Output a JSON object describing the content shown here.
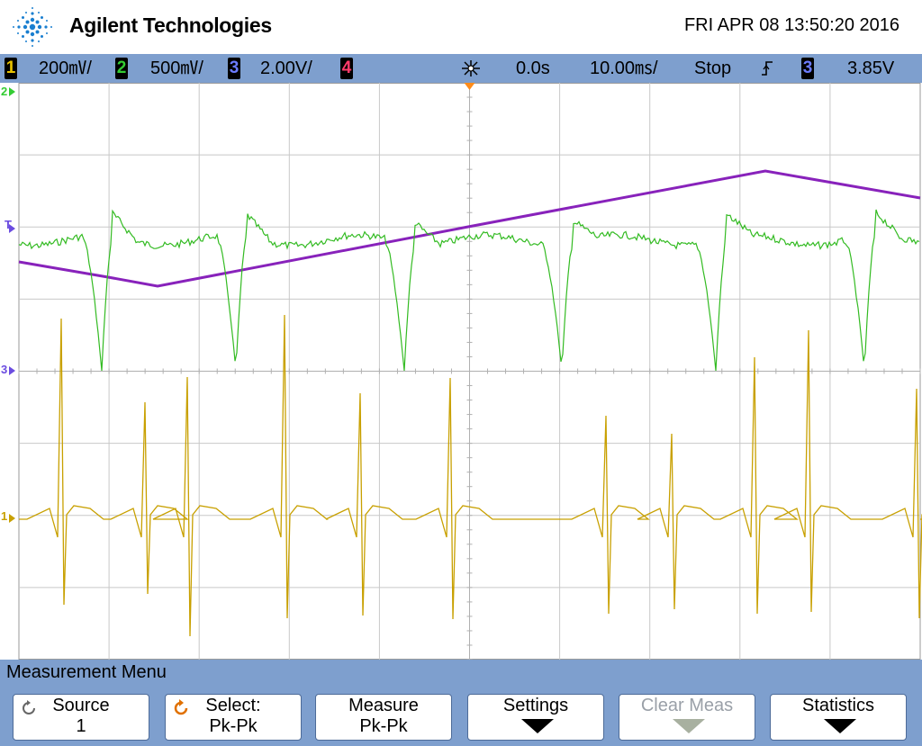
{
  "header": {
    "brand": "Agilent Technologies",
    "datetime": "FRI APR 08 13:50:20 2016"
  },
  "statusbar": {
    "channels": [
      {
        "num": "1",
        "scale": "200㎷/",
        "color": "#e8c200"
      },
      {
        "num": "2",
        "scale": "500㎷/",
        "color": "#33cc33"
      },
      {
        "num": "3",
        "scale": "2.00V/",
        "color": "#6b7cff"
      },
      {
        "num": "4",
        "scale": "",
        "color": "#ff3b6b"
      }
    ],
    "time_delay": "0.0s",
    "time_scale": "10.00㎳/",
    "run_state": "Stop",
    "trigger_source": "3",
    "trigger_level": "3.85V"
  },
  "markers": {
    "ch1": "1",
    "ch2": "2",
    "ch3": "3",
    "trigger": "T"
  },
  "colors": {
    "ch1_trace": "#c8a000",
    "ch2_trace": "#33bb22",
    "ch3_trace": "#8822bb",
    "grid": "#c8c8c8",
    "panel": "#7e9fce"
  },
  "menu": {
    "title": "Measurement Menu",
    "softkeys": [
      {
        "line1": "Source",
        "line2": "1",
        "icon": "rotate-knob-icon",
        "enabled": true
      },
      {
        "line1": "Select:",
        "line2": "Pk-Pk",
        "icon": "select-knob-icon",
        "enabled": true
      },
      {
        "line1": "Measure",
        "line2": "Pk-Pk",
        "enabled": true
      },
      {
        "line1": "Settings",
        "line2": "",
        "icon": "submenu-arrow-icon",
        "enabled": true
      },
      {
        "line1": "Clear Meas",
        "line2": "",
        "icon": "submenu-arrow-icon",
        "enabled": false
      },
      {
        "line1": "Statistics",
        "line2": "",
        "icon": "submenu-arrow-icon",
        "enabled": true
      }
    ]
  }
}
